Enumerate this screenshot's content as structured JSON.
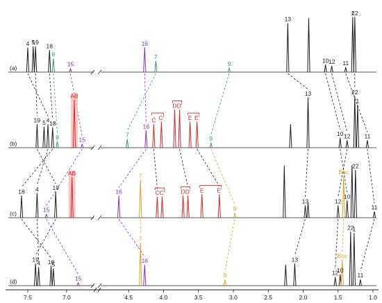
{
  "chart_data": {
    "type": "line",
    "title": "",
    "xlabel": "",
    "ylabel": "",
    "xlim": [
      7.75,
      0.95
    ],
    "x_reversed": true,
    "axis_break_ppm": 6.4,
    "ticks": [
      {
        "value": 7.5,
        "label": "7.5"
      },
      {
        "value": 7.0,
        "label": "7.0"
      },
      {
        "value": 4.5,
        "label": "4.5"
      },
      {
        "value": 4.0,
        "label": "4.0"
      },
      {
        "value": 3.5,
        "label": "3.5"
      },
      {
        "value": 3.0,
        "label": "3.0"
      },
      {
        "value": 2.5,
        "label": "2.5"
      },
      {
        "value": 2.0,
        "label": "2.0"
      },
      {
        "value": 1.5,
        "label": "1.5"
      },
      {
        "value": 1.0,
        "label": "1.0"
      }
    ],
    "colors": {
      "black": "#1a1a1a",
      "red": "#d62424",
      "purple": "#8a2bbf",
      "green": "#2a9a7a",
      "orange": "#e0a020",
      "highlight": "#f3b7b7"
    },
    "series": [
      {
        "label": "(a)",
        "peaks": [
          {
            "ppm": 7.5,
            "h": 0.4,
            "color": "black",
            "label": "4"
          },
          {
            "ppm": 7.43,
            "h": 0.42,
            "color": "black",
            "label": "5"
          },
          {
            "ppm": 7.4,
            "h": 0.42,
            "color": "black",
            "label": "19"
          },
          {
            "ppm": 7.22,
            "h": 0.36,
            "color": "black",
            "label": "18"
          },
          {
            "ppm": 7.17,
            "h": 0.22,
            "color": "green",
            "label": "8"
          },
          {
            "ppm": 6.95,
            "h": 0.06,
            "color": "purple",
            "label": "15"
          },
          {
            "ppm": 4.27,
            "h": 0.4,
            "color": "purple",
            "label": "16"
          },
          {
            "ppm": 4.11,
            "h": 0.18,
            "color": "green",
            "label": "7"
          },
          {
            "ppm": 3.06,
            "h": 0.07,
            "color": "green",
            "label": "9"
          },
          {
            "ppm": 2.22,
            "h": 0.8,
            "color": "black",
            "label": "13"
          },
          {
            "ppm": 1.92,
            "h": 0.88,
            "color": "black",
            "label": ""
          },
          {
            "ppm": 1.68,
            "h": 0.12,
            "color": "black",
            "label": "10"
          },
          {
            "ppm": 1.59,
            "h": 0.1,
            "color": "black",
            "label": "12"
          },
          {
            "ppm": 1.39,
            "h": 0.08,
            "color": "black",
            "label": "11"
          },
          {
            "ppm": 1.29,
            "h": 0.9,
            "color": "black",
            "label": "1"
          },
          {
            "ppm": 1.26,
            "h": 0.9,
            "color": "black",
            "label": "22"
          }
        ]
      },
      {
        "label": "(b)",
        "peaks": [
          {
            "ppm": 7.38,
            "h": 0.38,
            "color": "black",
            "label": "19"
          },
          {
            "ppm": 7.29,
            "h": 0.34,
            "color": "black",
            "label": "5"
          },
          {
            "ppm": 7.24,
            "h": 0.38,
            "color": "black",
            "label": "4"
          },
          {
            "ppm": 7.18,
            "h": 0.33,
            "color": "black",
            "label": "18"
          },
          {
            "ppm": 7.12,
            "h": 0.1,
            "color": "green",
            "label": "8"
          },
          {
            "ppm": 6.9,
            "h": 0.78,
            "color": "red",
            "label": "AB",
            "highlight": true
          },
          {
            "ppm": 6.8,
            "h": 0.06,
            "color": "purple",
            "label": "15"
          },
          {
            "ppm": 4.52,
            "h": 0.14,
            "color": "green",
            "label": "7"
          },
          {
            "ppm": 4.25,
            "h": 0.28,
            "color": "purple",
            "label": "16"
          },
          {
            "ppm": 4.14,
            "h": 0.38,
            "color": "red",
            "label": "C"
          },
          {
            "ppm": 4.03,
            "h": 0.42,
            "color": "red",
            "label": "C'"
          },
          {
            "ppm": 3.84,
            "h": 0.62,
            "color": "red",
            "label": "D"
          },
          {
            "ppm": 3.77,
            "h": 0.62,
            "color": "red",
            "label": "D'"
          },
          {
            "ppm": 3.62,
            "h": 0.42,
            "color": "red",
            "label": "E"
          },
          {
            "ppm": 3.52,
            "h": 0.42,
            "color": "red",
            "label": "E'"
          },
          {
            "ppm": 3.32,
            "h": 0.08,
            "color": "green",
            "label": "9"
          },
          {
            "ppm": 2.18,
            "h": 0.38,
            "color": "black",
            "label": ""
          },
          {
            "ppm": 1.93,
            "h": 0.82,
            "color": "black",
            "label": "13"
          },
          {
            "ppm": 1.47,
            "h": 0.16,
            "color": "black",
            "label": "10"
          },
          {
            "ppm": 1.37,
            "h": 0.12,
            "color": "black",
            "label": "12"
          },
          {
            "ppm": 1.26,
            "h": 0.84,
            "color": "black",
            "label": "22"
          },
          {
            "ppm": 1.22,
            "h": 0.7,
            "color": "black",
            "label": "1"
          },
          {
            "ppm": 1.08,
            "h": 0.12,
            "color": "black",
            "label": "11"
          }
        ]
      },
      {
        "label": "(c)",
        "peaks": [
          {
            "ppm": 7.58,
            "h": 0.36,
            "color": "black",
            "label": "18"
          },
          {
            "ppm": 7.38,
            "h": 0.4,
            "color": "black",
            "label": "4"
          },
          {
            "ppm": 7.26,
            "h": 0.06,
            "color": "purple",
            "label": "15"
          },
          {
            "ppm": 7.14,
            "h": 0.42,
            "color": "black",
            "label": "19"
          },
          {
            "ppm": 6.93,
            "h": 0.66,
            "color": "red",
            "label": "AB",
            "highlight": true
          },
          {
            "ppm": 4.64,
            "h": 0.36,
            "color": "purple",
            "label": "16"
          },
          {
            "ppm": 4.33,
            "h": 0.62,
            "color": "orange",
            "label": "7"
          },
          {
            "ppm": 4.09,
            "h": 0.34,
            "color": "red",
            "label": "C"
          },
          {
            "ppm": 4.02,
            "h": 0.34,
            "color": "red",
            "label": "C'"
          },
          {
            "ppm": 3.72,
            "h": 0.36,
            "color": "red",
            "label": "D"
          },
          {
            "ppm": 3.65,
            "h": 0.36,
            "color": "red",
            "label": "D'"
          },
          {
            "ppm": 3.45,
            "h": 0.38,
            "color": "red",
            "label": "E"
          },
          {
            "ppm": 3.2,
            "h": 0.38,
            "color": "red",
            "label": "E'"
          },
          {
            "ppm": 2.98,
            "h": 0.08,
            "color": "orange",
            "label": "9"
          },
          {
            "ppm": 2.27,
            "h": 0.85,
            "color": "black",
            "label": ""
          },
          {
            "ppm": 1.97,
            "h": 0.2,
            "color": "black",
            "label": "13"
          },
          {
            "ppm": 1.93,
            "h": 0.24,
            "color": "black",
            "label": ""
          },
          {
            "ppm": 1.5,
            "h": 0.2,
            "color": "black",
            "label": "12"
          },
          {
            "ppm": 1.42,
            "h": 0.68,
            "color": "orange",
            "label": "Boc"
          },
          {
            "ppm": 1.37,
            "h": 0.28,
            "color": "black",
            "label": "10"
          },
          {
            "ppm": 1.3,
            "h": 0.86,
            "color": "black",
            "label": ""
          },
          {
            "ppm": 1.25,
            "h": 0.78,
            "color": "black",
            "label": "22"
          },
          {
            "ppm": 0.98,
            "h": 0.1,
            "color": "black",
            "label": "11"
          }
        ]
      },
      {
        "label": "(d)",
        "peaks": [
          {
            "ppm": 7.4,
            "h": 0.36,
            "color": "black",
            "label": "19"
          },
          {
            "ppm": 7.36,
            "h": 0.3,
            "color": "black",
            "label": "4"
          },
          {
            "ppm": 7.2,
            "h": 0.32,
            "color": "black",
            "label": "18"
          },
          {
            "ppm": 7.17,
            "h": 0.28,
            "color": "black",
            "label": "5"
          },
          {
            "ppm": 6.85,
            "h": 0.05,
            "color": "purple",
            "label": "15"
          },
          {
            "ppm": 4.33,
            "h": 0.7,
            "color": "orange",
            "label": "7"
          },
          {
            "ppm": 4.27,
            "h": 0.34,
            "color": "purple",
            "label": "16"
          },
          {
            "ppm": 3.12,
            "h": 0.1,
            "color": "orange",
            "label": "9"
          },
          {
            "ppm": 2.25,
            "h": 0.34,
            "color": "black",
            "label": ""
          },
          {
            "ppm": 2.12,
            "h": 0.36,
            "color": "black",
            "label": "13"
          },
          {
            "ppm": 1.54,
            "h": 0.14,
            "color": "black",
            "label": "12"
          },
          {
            "ppm": 1.47,
            "h": 0.18,
            "color": "black",
            "label": "10"
          },
          {
            "ppm": 1.44,
            "h": 0.42,
            "color": "orange",
            "label": "Boc"
          },
          {
            "ppm": 1.32,
            "h": 0.88,
            "color": "black",
            "label": "22"
          },
          {
            "ppm": 1.27,
            "h": 0.86,
            "color": "black",
            "label": "1"
          },
          {
            "ppm": 1.18,
            "h": 0.1,
            "color": "black",
            "label": "11"
          }
        ]
      }
    ],
    "correlations": [
      {
        "from": [
          0,
          "8"
        ],
        "to": [
          1,
          "8"
        ],
        "color": "green"
      },
      {
        "from": [
          0,
          "7"
        ],
        "to": [
          1,
          "7"
        ],
        "color": "green"
      },
      {
        "from": [
          0,
          "9"
        ],
        "to": [
          1,
          "9"
        ],
        "color": "green"
      },
      {
        "from": [
          0,
          "15"
        ],
        "to": [
          1,
          "15"
        ],
        "color": "purple"
      },
      {
        "from": [
          0,
          "16"
        ],
        "to": [
          1,
          "16"
        ],
        "color": "purple"
      },
      {
        "from": [
          0,
          "4"
        ],
        "to": [
          1,
          "4"
        ],
        "color": "black"
      },
      {
        "from": [
          0,
          "19"
        ],
        "to": [
          1,
          "19"
        ],
        "color": "black"
      },
      {
        "from": [
          0,
          "18"
        ],
        "to": [
          1,
          "18"
        ],
        "color": "black"
      },
      {
        "from": [
          0,
          "13"
        ],
        "to": [
          1,
          "13"
        ],
        "color": "black"
      },
      {
        "from": [
          0,
          "10"
        ],
        "to": [
          1,
          "10"
        ],
        "color": "black"
      },
      {
        "from": [
          0,
          "12"
        ],
        "to": [
          1,
          "12"
        ],
        "color": "black"
      },
      {
        "from": [
          0,
          "11"
        ],
        "to": [
          1,
          "11"
        ],
        "color": "black"
      },
      {
        "from": [
          0,
          "22"
        ],
        "to": [
          1,
          "22"
        ],
        "color": "black"
      },
      {
        "from": [
          1,
          "19"
        ],
        "to": [
          2,
          "19"
        ],
        "color": "black"
      },
      {
        "from": [
          1,
          "4"
        ],
        "to": [
          2,
          "4"
        ],
        "color": "black"
      },
      {
        "from": [
          1,
          "18"
        ],
        "to": [
          2,
          "18"
        ],
        "color": "black"
      },
      {
        "from": [
          1,
          "15"
        ],
        "to": [
          2,
          "15"
        ],
        "color": "purple"
      },
      {
        "from": [
          1,
          "16"
        ],
        "to": [
          2,
          "16"
        ],
        "color": "purple"
      },
      {
        "from": [
          1,
          "C"
        ],
        "to": [
          2,
          "C"
        ],
        "color": "black"
      },
      {
        "from": [
          1,
          "D'"
        ],
        "to": [
          2,
          "D'"
        ],
        "color": "black"
      },
      {
        "from": [
          1,
          "E'"
        ],
        "to": [
          2,
          "E'"
        ],
        "color": "black"
      },
      {
        "from": [
          1,
          "9"
        ],
        "to": [
          2,
          "9"
        ],
        "color": "orange"
      },
      {
        "from": [
          1,
          "13"
        ],
        "to": [
          2,
          "13"
        ],
        "color": "black"
      },
      {
        "from": [
          1,
          "10"
        ],
        "to": [
          2,
          "10"
        ],
        "color": "black"
      },
      {
        "from": [
          1,
          "12"
        ],
        "to": [
          2,
          "12"
        ],
        "color": "black"
      },
      {
        "from": [
          1,
          "11"
        ],
        "to": [
          2,
          "11"
        ],
        "color": "black"
      },
      {
        "from": [
          2,
          "18"
        ],
        "to": [
          3,
          "18"
        ],
        "color": "black"
      },
      {
        "from": [
          2,
          "4"
        ],
        "to": [
          3,
          "4"
        ],
        "color": "black"
      },
      {
        "from": [
          2,
          "19"
        ],
        "to": [
          3,
          "19"
        ],
        "color": "black"
      },
      {
        "from": [
          2,
          "15"
        ],
        "to": [
          3,
          "15"
        ],
        "color": "purple"
      },
      {
        "from": [
          2,
          "16"
        ],
        "to": [
          3,
          "16"
        ],
        "color": "purple"
      },
      {
        "from": [
          2,
          "7"
        ],
        "to": [
          3,
          "7"
        ],
        "color": "orange"
      },
      {
        "from": [
          2,
          "9"
        ],
        "to": [
          3,
          "9"
        ],
        "color": "orange"
      },
      {
        "from": [
          2,
          "13"
        ],
        "to": [
          3,
          "13"
        ],
        "color": "black"
      },
      {
        "from": [
          2,
          "12"
        ],
        "to": [
          3,
          "12"
        ],
        "color": "black"
      },
      {
        "from": [
          2,
          "Boc"
        ],
        "to": [
          3,
          "Boc"
        ],
        "color": "orange"
      },
      {
        "from": [
          2,
          "11"
        ],
        "to": [
          3,
          "11"
        ],
        "color": "black"
      }
    ],
    "brackets": [
      {
        "series": 1,
        "labels": [
          "C",
          "C'"
        ]
      },
      {
        "series": 1,
        "labels": [
          "D",
          "D'"
        ]
      },
      {
        "series": 1,
        "labels": [
          "E",
          "E'"
        ]
      },
      {
        "series": 2,
        "labels": [
          "C",
          "C'"
        ]
      },
      {
        "series": 2,
        "labels": [
          "D",
          "D'"
        ]
      },
      {
        "series": 2,
        "labels": [
          "E",
          "E'"
        ]
      }
    ]
  }
}
